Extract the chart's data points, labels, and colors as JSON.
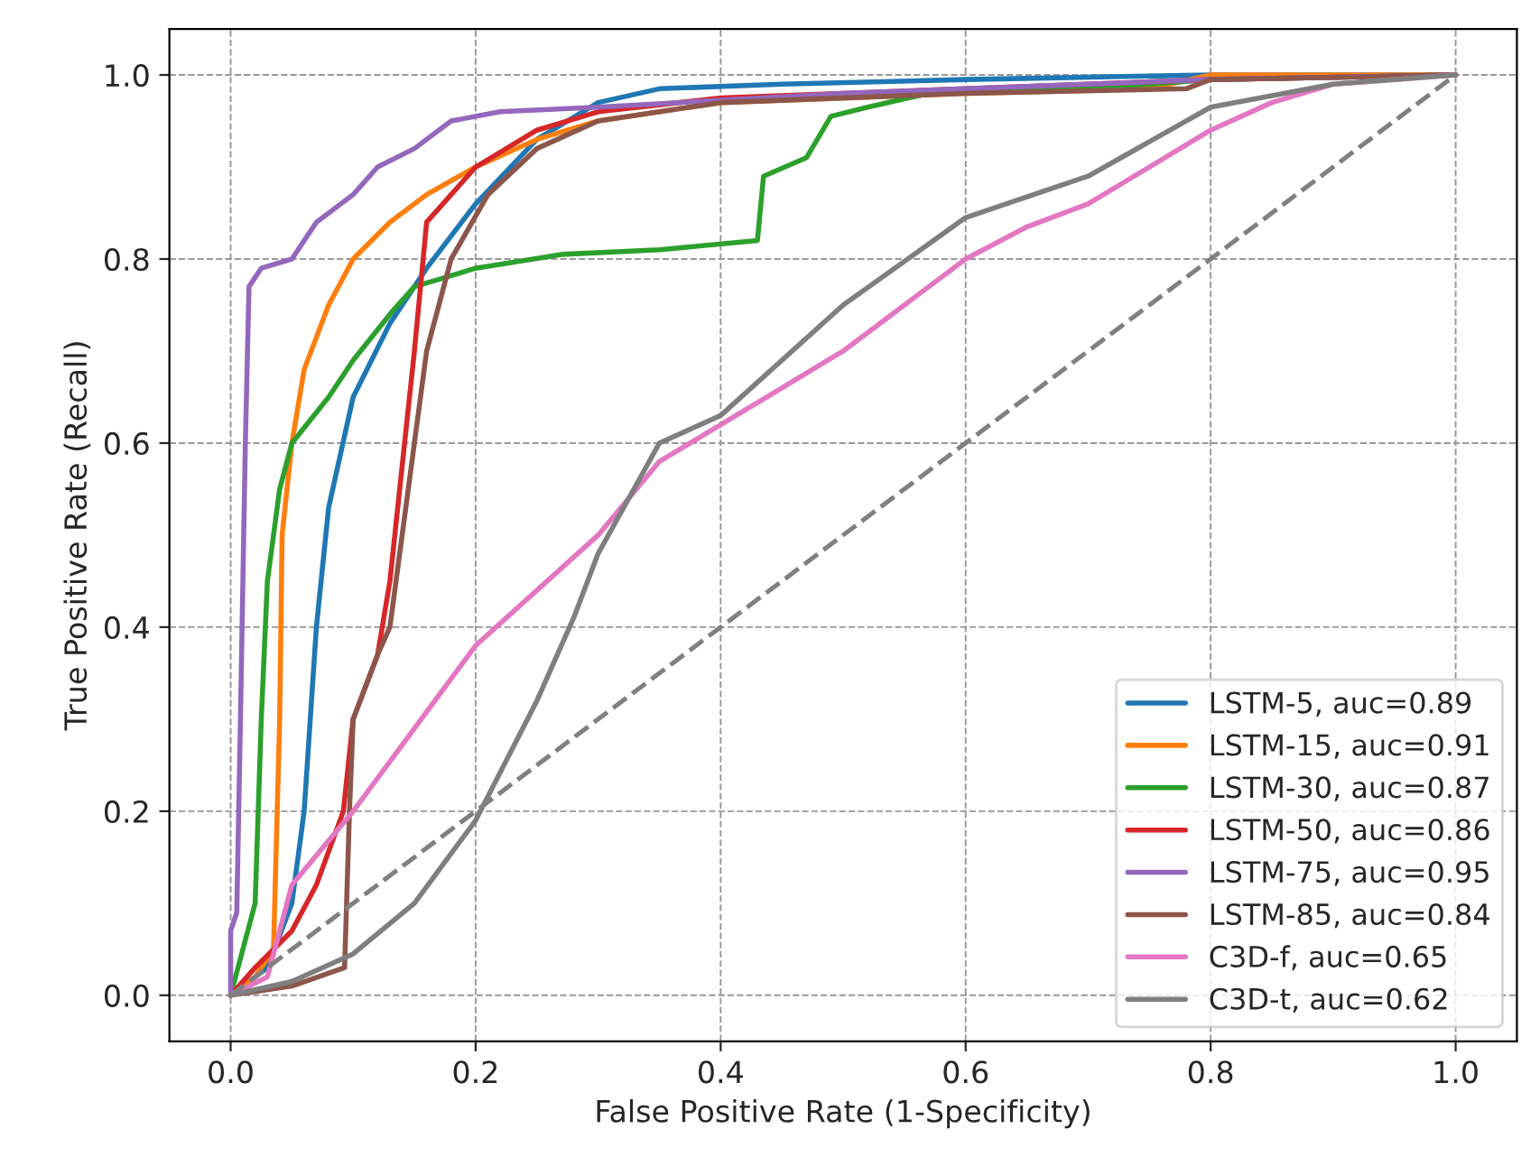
{
  "chart_data": {
    "type": "line",
    "xlabel": "False Positive Rate (1-Specificity)",
    "ylabel": "True Positive Rate (Recall)",
    "xlim": [
      -0.05,
      1.05
    ],
    "ylim": [
      -0.05,
      1.05
    ],
    "xticks": [
      {
        "value": 0,
        "label": "0.0"
      },
      0.2,
      0.4,
      0.6,
      0.8,
      {
        "value": 1,
        "label": "1.0"
      }
    ],
    "yticks": [
      {
        "value": 0,
        "label": "0.0"
      },
      0.2,
      0.4,
      0.6,
      0.8,
      {
        "value": 1,
        "label": "1.0"
      }
    ],
    "grid": true,
    "legend": "bottom right",
    "line_style": "solid",
    "series": [
      {
        "name": "LSTM-5, auc=0.89",
        "color": "#1f77b4",
        "x": [
          0,
          0.03,
          0.05,
          0.06,
          0.07,
          0.08,
          0.1,
          0.13,
          0.16,
          0.2,
          0.25,
          0.3,
          0.35,
          0.45,
          0.6,
          0.8,
          1
        ],
        "values": [
          0,
          0.03,
          0.1,
          0.2,
          0.4,
          0.53,
          0.65,
          0.73,
          0.79,
          0.86,
          0.93,
          0.97,
          0.985,
          0.99,
          0.995,
          1,
          1
        ]
      },
      {
        "name": "LSTM-15, auc=0.91",
        "color": "#ff7f0e",
        "x": [
          0,
          0.02,
          0.035,
          0.04,
          0.042,
          0.05,
          0.06,
          0.08,
          0.1,
          0.13,
          0.16,
          0.2,
          0.25,
          0.3,
          0.4,
          0.6,
          0.75,
          0.8,
          1
        ],
        "values": [
          0,
          0.02,
          0.05,
          0.3,
          0.5,
          0.6,
          0.68,
          0.75,
          0.8,
          0.84,
          0.87,
          0.9,
          0.93,
          0.95,
          0.97,
          0.98,
          0.985,
          1,
          1
        ]
      },
      {
        "name": "LSTM-30, auc=0.87",
        "color": "#2ca02c",
        "x": [
          0,
          0.01,
          0.02,
          0.025,
          0.03,
          0.04,
          0.05,
          0.08,
          0.1,
          0.13,
          0.15,
          0.2,
          0.27,
          0.35,
          0.43,
          0.435,
          0.47,
          0.49,
          0.52,
          0.57,
          0.7,
          0.8,
          1
        ],
        "values": [
          0,
          0.05,
          0.1,
          0.3,
          0.45,
          0.55,
          0.6,
          0.65,
          0.69,
          0.74,
          0.77,
          0.79,
          0.805,
          0.81,
          0.82,
          0.89,
          0.91,
          0.955,
          0.965,
          0.98,
          0.985,
          0.995,
          1
        ]
      },
      {
        "name": "LSTM-50, auc=0.86",
        "color": "#d62728",
        "x": [
          0,
          0.02,
          0.05,
          0.07,
          0.092,
          0.1,
          0.12,
          0.13,
          0.15,
          0.16,
          0.18,
          0.2,
          0.25,
          0.3,
          0.4,
          0.6,
          0.8,
          1
        ],
        "values": [
          0,
          0.03,
          0.07,
          0.12,
          0.2,
          0.3,
          0.37,
          0.45,
          0.7,
          0.84,
          0.87,
          0.9,
          0.94,
          0.96,
          0.975,
          0.985,
          0.995,
          1
        ]
      },
      {
        "name": "LSTM-75, auc=0.95",
        "color": "#9467bd",
        "x": [
          0,
          0,
          0.005,
          0.008,
          0.012,
          0.015,
          0.025,
          0.05,
          0.07,
          0.1,
          0.12,
          0.15,
          0.18,
          0.22,
          0.3,
          0.5,
          0.8,
          1
        ],
        "values": [
          0,
          0.07,
          0.09,
          0.3,
          0.6,
          0.77,
          0.79,
          0.8,
          0.84,
          0.87,
          0.9,
          0.92,
          0.95,
          0.96,
          0.965,
          0.98,
          0.995,
          1
        ]
      },
      {
        "name": "LSTM-85, auc=0.84",
        "color": "#8c564b",
        "x": [
          0,
          0.05,
          0.093,
          0.097,
          0.1,
          0.12,
          0.13,
          0.14,
          0.16,
          0.18,
          0.21,
          0.25,
          0.3,
          0.4,
          0.6,
          0.78,
          0.8,
          1
        ],
        "values": [
          0,
          0.01,
          0.03,
          0.2,
          0.3,
          0.37,
          0.4,
          0.5,
          0.7,
          0.8,
          0.87,
          0.92,
          0.95,
          0.97,
          0.98,
          0.985,
          0.995,
          1
        ]
      },
      {
        "name": "C3D-f, auc=0.65",
        "color": "#e377c2",
        "x": [
          0,
          0.03,
          0.05,
          0.1,
          0.15,
          0.2,
          0.25,
          0.3,
          0.35,
          0.4,
          0.45,
          0.5,
          0.55,
          0.6,
          0.65,
          0.7,
          0.75,
          0.8,
          0.85,
          0.9,
          1
        ],
        "values": [
          0,
          0.02,
          0.12,
          0.2,
          0.29,
          0.38,
          0.44,
          0.5,
          0.58,
          0.62,
          0.66,
          0.7,
          0.75,
          0.8,
          0.835,
          0.86,
          0.9,
          0.94,
          0.97,
          0.99,
          1
        ]
      },
      {
        "name": "C3D-t, auc=0.62",
        "color": "#7f7f7f",
        "x": [
          0,
          0.05,
          0.1,
          0.15,
          0.2,
          0.25,
          0.28,
          0.3,
          0.35,
          0.4,
          0.5,
          0.6,
          0.7,
          0.8,
          0.9,
          1
        ],
        "values": [
          0,
          0.015,
          0.045,
          0.1,
          0.19,
          0.32,
          0.41,
          0.48,
          0.6,
          0.63,
          0.75,
          0.845,
          0.89,
          0.965,
          0.99,
          1
        ]
      },
      {
        "color": "#808080",
        "line_style": "dashed",
        "x": [
          0,
          1
        ],
        "values": [
          0,
          1
        ]
      }
    ]
  }
}
